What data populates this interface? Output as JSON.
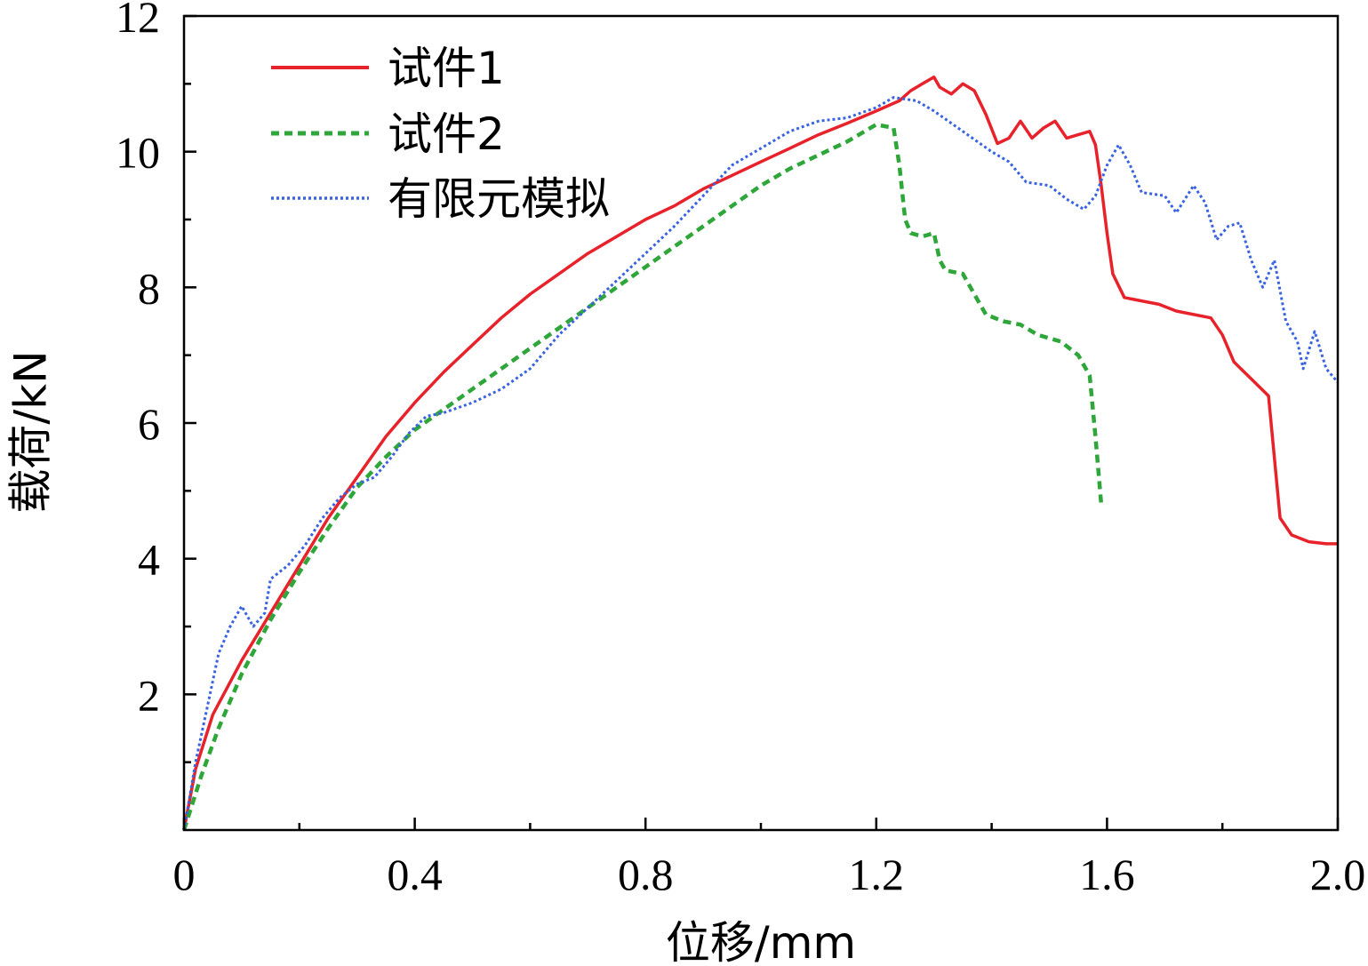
{
  "chart_data": {
    "type": "line",
    "title": "",
    "xlabel": "位移/mm",
    "ylabel": "载荷/kN",
    "xlim": [
      0,
      2.0
    ],
    "ylim": [
      0,
      12
    ],
    "x_ticks": [
      {
        "value": 0,
        "label": "0"
      },
      {
        "value": 0.4,
        "label": "0.4"
      },
      {
        "value": 0.8,
        "label": "0.8"
      },
      {
        "value": 1.2,
        "label": "1.2"
      },
      {
        "value": 1.6,
        "label": "1.6"
      },
      {
        "value": 2.0,
        "label": "2.0"
      }
    ],
    "y_ticks": [
      {
        "value": 2,
        "label": "2"
      },
      {
        "value": 4,
        "label": "4"
      },
      {
        "value": 6,
        "label": "6"
      },
      {
        "value": 8,
        "label": "8"
      },
      {
        "value": 10,
        "label": "10"
      },
      {
        "value": 12,
        "label": "12"
      }
    ],
    "x_minor_step": 0.2,
    "y_minor_step": 1,
    "legend_position": "top-left",
    "series": [
      {
        "name": "试件1",
        "color": "#e8222a",
        "style": "solid",
        "points": [
          [
            0,
            0
          ],
          [
            0.02,
            0.9
          ],
          [
            0.05,
            1.7
          ],
          [
            0.1,
            2.5
          ],
          [
            0.15,
            3.2
          ],
          [
            0.2,
            3.9
          ],
          [
            0.25,
            4.6
          ],
          [
            0.3,
            5.2
          ],
          [
            0.35,
            5.8
          ],
          [
            0.4,
            6.3
          ],
          [
            0.45,
            6.75
          ],
          [
            0.5,
            7.15
          ],
          [
            0.55,
            7.55
          ],
          [
            0.6,
            7.9
          ],
          [
            0.65,
            8.2
          ],
          [
            0.7,
            8.5
          ],
          [
            0.75,
            8.75
          ],
          [
            0.8,
            9.0
          ],
          [
            0.85,
            9.2
          ],
          [
            0.9,
            9.45
          ],
          [
            0.95,
            9.65
          ],
          [
            1.0,
            9.85
          ],
          [
            1.05,
            10.05
          ],
          [
            1.1,
            10.25
          ],
          [
            1.15,
            10.42
          ],
          [
            1.2,
            10.6
          ],
          [
            1.24,
            10.75
          ],
          [
            1.26,
            10.9
          ],
          [
            1.28,
            11.0
          ],
          [
            1.3,
            11.1
          ],
          [
            1.31,
            10.95
          ],
          [
            1.33,
            10.85
          ],
          [
            1.35,
            11.0
          ],
          [
            1.37,
            10.9
          ],
          [
            1.39,
            10.55
          ],
          [
            1.41,
            10.12
          ],
          [
            1.43,
            10.2
          ],
          [
            1.45,
            10.45
          ],
          [
            1.47,
            10.2
          ],
          [
            1.49,
            10.35
          ],
          [
            1.51,
            10.45
          ],
          [
            1.53,
            10.2
          ],
          [
            1.55,
            10.25
          ],
          [
            1.57,
            10.3
          ],
          [
            1.58,
            10.1
          ],
          [
            1.59,
            9.5
          ],
          [
            1.6,
            8.8
          ],
          [
            1.61,
            8.2
          ],
          [
            1.63,
            7.85
          ],
          [
            1.66,
            7.8
          ],
          [
            1.69,
            7.75
          ],
          [
            1.72,
            7.65
          ],
          [
            1.75,
            7.6
          ],
          [
            1.78,
            7.55
          ],
          [
            1.8,
            7.3
          ],
          [
            1.82,
            6.9
          ],
          [
            1.85,
            6.65
          ],
          [
            1.88,
            6.4
          ],
          [
            1.89,
            5.5
          ],
          [
            1.9,
            4.6
          ],
          [
            1.92,
            4.35
          ],
          [
            1.95,
            4.25
          ],
          [
            1.98,
            4.22
          ],
          [
            2.0,
            4.22
          ]
        ]
      },
      {
        "name": "试件2",
        "color": "#2ea63a",
        "style": "dashed",
        "points": [
          [
            0,
            0
          ],
          [
            0.03,
            0.8
          ],
          [
            0.06,
            1.5
          ],
          [
            0.1,
            2.3
          ],
          [
            0.15,
            3.1
          ],
          [
            0.2,
            3.8
          ],
          [
            0.25,
            4.45
          ],
          [
            0.3,
            5.05
          ],
          [
            0.35,
            5.5
          ],
          [
            0.4,
            5.9
          ],
          [
            0.45,
            6.2
          ],
          [
            0.5,
            6.5
          ],
          [
            0.55,
            6.8
          ],
          [
            0.6,
            7.1
          ],
          [
            0.65,
            7.4
          ],
          [
            0.7,
            7.7
          ],
          [
            0.75,
            8.0
          ],
          [
            0.8,
            8.3
          ],
          [
            0.85,
            8.6
          ],
          [
            0.9,
            8.9
          ],
          [
            0.95,
            9.2
          ],
          [
            1.0,
            9.5
          ],
          [
            1.05,
            9.75
          ],
          [
            1.1,
            9.95
          ],
          [
            1.15,
            10.15
          ],
          [
            1.2,
            10.4
          ],
          [
            1.23,
            10.35
          ],
          [
            1.24,
            9.8
          ],
          [
            1.25,
            9.0
          ],
          [
            1.26,
            8.8
          ],
          [
            1.28,
            8.75
          ],
          [
            1.3,
            8.8
          ],
          [
            1.31,
            8.4
          ],
          [
            1.32,
            8.25
          ],
          [
            1.35,
            8.2
          ],
          [
            1.37,
            7.9
          ],
          [
            1.39,
            7.6
          ],
          [
            1.42,
            7.5
          ],
          [
            1.45,
            7.45
          ],
          [
            1.48,
            7.3
          ],
          [
            1.52,
            7.2
          ],
          [
            1.55,
            7.0
          ],
          [
            1.57,
            6.7
          ],
          [
            1.58,
            5.8
          ],
          [
            1.59,
            4.8
          ]
        ]
      },
      {
        "name": "有限元模拟",
        "color": "#3a63e0",
        "style": "dotted",
        "points": [
          [
            0,
            0
          ],
          [
            0.02,
            1.0
          ],
          [
            0.04,
            1.8
          ],
          [
            0.06,
            2.6
          ],
          [
            0.08,
            3.0
          ],
          [
            0.1,
            3.3
          ],
          [
            0.12,
            3.0
          ],
          [
            0.14,
            3.2
          ],
          [
            0.15,
            3.7
          ],
          [
            0.18,
            3.9
          ],
          [
            0.21,
            4.2
          ],
          [
            0.24,
            4.6
          ],
          [
            0.27,
            4.9
          ],
          [
            0.3,
            5.1
          ],
          [
            0.33,
            5.2
          ],
          [
            0.36,
            5.5
          ],
          [
            0.39,
            5.85
          ],
          [
            0.42,
            6.1
          ],
          [
            0.45,
            6.15
          ],
          [
            0.5,
            6.3
          ],
          [
            0.55,
            6.5
          ],
          [
            0.6,
            6.8
          ],
          [
            0.65,
            7.3
          ],
          [
            0.7,
            7.7
          ],
          [
            0.75,
            8.1
          ],
          [
            0.8,
            8.5
          ],
          [
            0.85,
            8.9
          ],
          [
            0.9,
            9.35
          ],
          [
            0.95,
            9.8
          ],
          [
            1.0,
            10.05
          ],
          [
            1.05,
            10.3
          ],
          [
            1.1,
            10.45
          ],
          [
            1.15,
            10.5
          ],
          [
            1.2,
            10.65
          ],
          [
            1.23,
            10.8
          ],
          [
            1.27,
            10.75
          ],
          [
            1.3,
            10.6
          ],
          [
            1.35,
            10.3
          ],
          [
            1.4,
            10.0
          ],
          [
            1.43,
            9.85
          ],
          [
            1.46,
            9.55
          ],
          [
            1.5,
            9.5
          ],
          [
            1.53,
            9.3
          ],
          [
            1.56,
            9.15
          ],
          [
            1.58,
            9.35
          ],
          [
            1.6,
            9.8
          ],
          [
            1.62,
            10.1
          ],
          [
            1.64,
            9.8
          ],
          [
            1.66,
            9.4
          ],
          [
            1.7,
            9.35
          ],
          [
            1.72,
            9.1
          ],
          [
            1.75,
            9.5
          ],
          [
            1.77,
            9.25
          ],
          [
            1.79,
            8.7
          ],
          [
            1.81,
            8.9
          ],
          [
            1.83,
            8.95
          ],
          [
            1.85,
            8.4
          ],
          [
            1.87,
            8.0
          ],
          [
            1.89,
            8.4
          ],
          [
            1.91,
            7.5
          ],
          [
            1.93,
            7.2
          ],
          [
            1.94,
            6.8
          ],
          [
            1.96,
            7.35
          ],
          [
            1.98,
            6.8
          ],
          [
            2.0,
            6.6
          ]
        ]
      }
    ]
  }
}
